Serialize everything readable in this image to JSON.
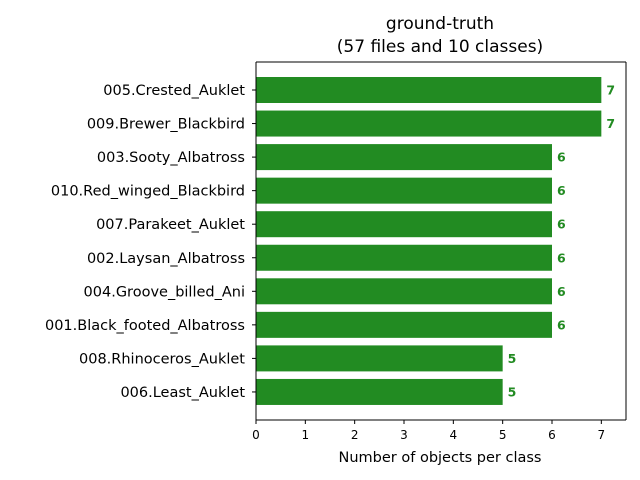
{
  "chart_data": {
    "type": "bar",
    "orientation": "horizontal",
    "title_line1": "ground-truth",
    "title_line2": "(57 files and 10 classes)",
    "xlabel": "Number of objects per class",
    "ylabel": "",
    "categories": [
      "005.Crested_Auklet",
      "009.Brewer_Blackbird",
      "003.Sooty_Albatross",
      "010.Red_winged_Blackbird",
      "007.Parakeet_Auklet",
      "002.Laysan_Albatross",
      "004.Groove_billed_Ani",
      "001.Black_footed_Albatross",
      "008.Rhinoceros_Auklet",
      "006.Least_Auklet"
    ],
    "values": [
      7,
      7,
      6,
      6,
      6,
      6,
      6,
      6,
      5,
      5
    ],
    "value_labels": [
      "7",
      "7",
      "6",
      "6",
      "6",
      "6",
      "6",
      "6",
      "5",
      "5"
    ],
    "xticks": [
      "0",
      "1",
      "2",
      "3",
      "4",
      "5",
      "6",
      "7"
    ],
    "xlim": [
      0,
      7.5
    ],
    "grid": false,
    "legend": "none",
    "bar_color": "#228b22",
    "label_color": "#228b22"
  }
}
